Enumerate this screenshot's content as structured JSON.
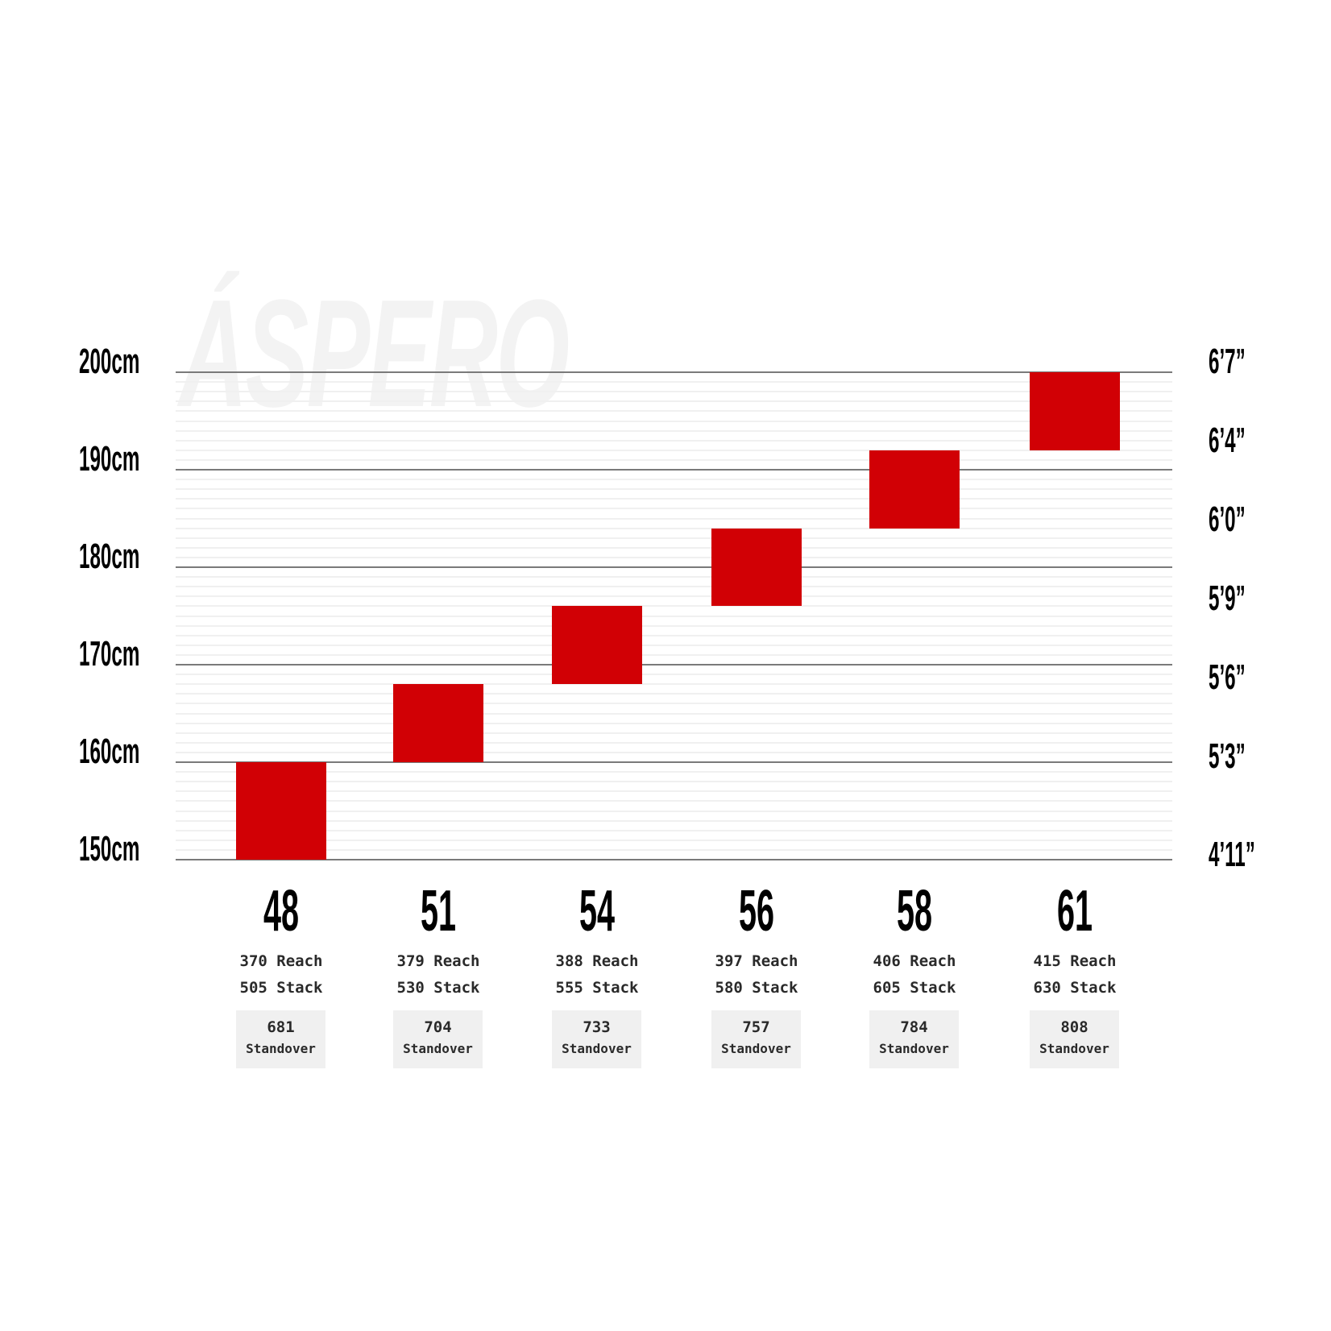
{
  "watermark": "ÁSPERO",
  "colors": {
    "bar": "#d10005",
    "major_grid": "#7a7a7a",
    "minor_grid": "#f0f0f0",
    "standover_box": "#f0f0f0"
  },
  "chart_data": {
    "type": "bar",
    "subtype": "floating-range",
    "title": "",
    "categories": [
      "48",
      "51",
      "54",
      "56",
      "58",
      "61"
    ],
    "series": [
      {
        "values": [
          [
            150,
            160
          ],
          [
            160,
            168
          ],
          [
            168,
            176
          ],
          [
            176,
            184
          ],
          [
            184,
            192
          ],
          [
            192,
            200
          ]
        ]
      }
    ],
    "ylim": [
      150,
      200
    ],
    "y_ticks_left": [
      "150cm",
      "160cm",
      "170cm",
      "180cm",
      "190cm",
      "200cm"
    ],
    "y_ticks_right": [
      "4’11”",
      "5’3”",
      "5’6”",
      "5’9”",
      "6’0”",
      "6’4”",
      "6’7”"
    ],
    "grid": true,
    "minor_grid_step": 1,
    "reach": [
      "370 Reach",
      "379 Reach",
      "388 Reach",
      "397 Reach",
      "406 Reach",
      "415 Reach"
    ],
    "stack": [
      "505 Stack",
      "530 Stack",
      "555 Stack",
      "580 Stack",
      "605 Stack",
      "630 Stack"
    ],
    "standover": [
      "681",
      "704",
      "733",
      "757",
      "784",
      "808"
    ],
    "standover_label": "Standover"
  }
}
